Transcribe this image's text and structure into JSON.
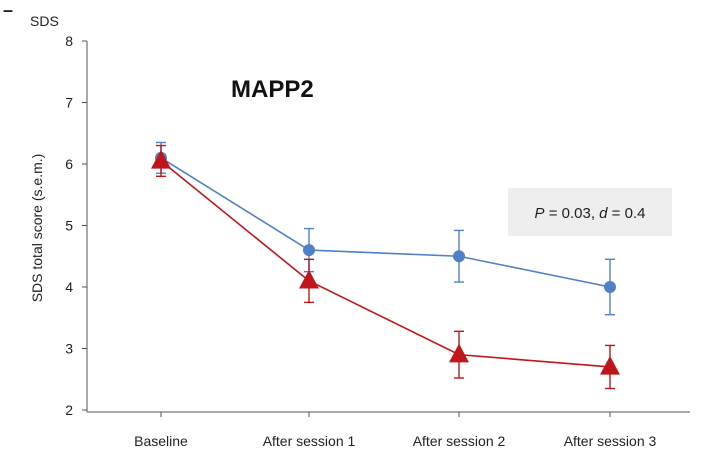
{
  "chart_data": {
    "type": "line",
    "panel_marker": "–",
    "title": "MAPP2",
    "unit_label": "SDS",
    "ylabel": "SDS total score (s.e.m.)",
    "xlabel": "",
    "categories": [
      "Baseline",
      "After session 1",
      "After session 2",
      "After session 3"
    ],
    "ylim": [
      2,
      8
    ],
    "yticks": [
      2,
      3,
      4,
      5,
      6,
      7,
      8
    ],
    "grid": false,
    "legend": "none",
    "annotation": {
      "p_label": "P",
      "p_value": " = 0.03, ",
      "d_label": "d",
      "d_value": " = 0.4"
    },
    "series": [
      {
        "marker": "circle",
        "color": "#4f81c7",
        "values": [
          6.1,
          4.6,
          4.5,
          4.0
        ],
        "sem": [
          0.25,
          0.35,
          0.42,
          0.45
        ]
      },
      {
        "marker": "triangle",
        "color": "#c0161a",
        "values": [
          6.05,
          4.1,
          2.9,
          2.7
        ],
        "sem": [
          0.25,
          0.35,
          0.38,
          0.35
        ]
      }
    ]
  }
}
